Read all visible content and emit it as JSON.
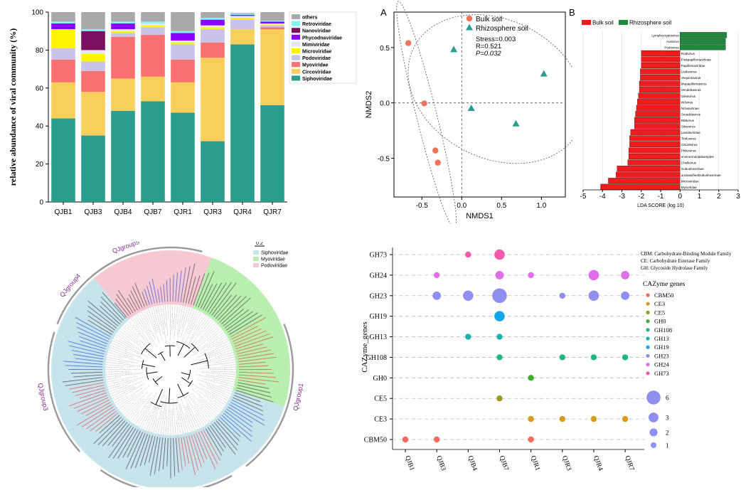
{
  "chart_data": [
    {
      "type": "bar",
      "stacked": true,
      "ylabel": "relative abundance of viral community (%)",
      "ylim": [
        0,
        100
      ],
      "yticks": [
        0,
        20,
        40,
        60,
        80,
        100
      ],
      "categories": [
        "QJB1",
        "QJB3",
        "QJB4",
        "QJB7",
        "QJR1",
        "QJR3",
        "QJR4",
        "QJR7"
      ],
      "legend_position": "right",
      "series": [
        {
          "name": "Siphoviridae",
          "color": "#2a9d8f",
          "values": [
            44,
            35,
            48,
            53,
            47,
            32,
            83,
            51
          ]
        },
        {
          "name": "Circoviridae",
          "color": "#f9cf5b",
          "values": [
            19,
            23,
            17,
            13,
            16,
            44,
            8,
            40
          ]
        },
        {
          "name": "Myoviridae",
          "color": "#f87170",
          "values": [
            12,
            11,
            22,
            22,
            12,
            8,
            0,
            1
          ]
        },
        {
          "name": "Podoviridae",
          "color": "#c9c3ec",
          "values": [
            6,
            5,
            2,
            4,
            8,
            7,
            5,
            1
          ]
        },
        {
          "name": "Microviridae",
          "color": "#fef400",
          "values": [
            10,
            4,
            1,
            1,
            1,
            1,
            1,
            0.5
          ]
        },
        {
          "name": "Mimiviridae",
          "color": "#e7e4f5",
          "values": [
            0,
            2,
            1,
            1,
            1,
            1,
            1,
            0.5
          ]
        },
        {
          "name": "Phycodnaviridae",
          "color": "#8b00ff",
          "values": [
            3,
            0,
            3,
            0,
            4,
            3,
            0.5,
            1
          ]
        },
        {
          "name": "Nanoviridae",
          "color": "#7b1060",
          "values": [
            0,
            10,
            0,
            0,
            0,
            0,
            0,
            0
          ]
        },
        {
          "name": "Retroviridae",
          "color": "#7ff5f5",
          "values": [
            1,
            1,
            1,
            1,
            1,
            1,
            0.5,
            0.5
          ]
        },
        {
          "name": "others",
          "color": "#a9a9a9",
          "values": [
            5,
            9,
            5,
            5,
            10,
            3,
            0.5,
            4.5
          ]
        }
      ]
    },
    {
      "type": "scatter",
      "panel_label": "A",
      "xlabel": "NMDS1",
      "ylabel": "NMDS2",
      "xlim": [
        -0.85,
        1.3
      ],
      "ylim": [
        -0.85,
        0.82
      ],
      "xticks": [
        -0.5,
        0.0,
        0.5,
        1.0
      ],
      "yticks": [
        -0.5,
        0.0,
        0.5
      ],
      "xtick_labels": [
        "-0.5",
        "0.0",
        "0.5",
        "1.0"
      ],
      "ytick_labels": [
        "-0.5",
        "0.0",
        "0.5"
      ],
      "annotations": [
        "Stress=0.003",
        "R=0.521",
        "P=0.032"
      ],
      "legend_position": "top-left",
      "series": [
        {
          "name": "Bulk soil",
          "marker": "circle",
          "color": "#f0735a",
          "points": [
            [
              -0.67,
              0.54
            ],
            [
              -0.47,
              -0.005
            ],
            [
              -0.33,
              -0.43
            ],
            [
              -0.3,
              -0.54
            ]
          ]
        },
        {
          "name": "Rhizosphere soil",
          "marker": "triangle",
          "color": "#2a9d8f",
          "points": [
            [
              -0.1,
              0.48
            ],
            [
              0.12,
              -0.05
            ],
            [
              0.68,
              -0.19
            ],
            [
              1.03,
              0.26
            ]
          ]
        }
      ]
    },
    {
      "type": "bar",
      "orientation": "horizontal",
      "panel_label": "B",
      "xlabel": "LDA SCORE (log 10)",
      "xlim": [
        -5,
        3
      ],
      "xticks": [
        -5,
        -4,
        -3,
        -2,
        -1,
        0,
        1,
        2,
        3
      ],
      "legend_position": "top",
      "legend": [
        {
          "name": "Bulk soil",
          "color": "#ee1c1c"
        },
        {
          "name": "Rhizosphere soil",
          "color": "#1f8a3b"
        }
      ],
      "categories": [
        "Lymphocryptovirus",
        "Aurivirus",
        "Podovirus",
        "Rodivirus",
        "Firstpapillomavirinae",
        "Papillomaviridae",
        "Listhevirus",
        "Vequintavirus",
        "Mupapillomavirus",
        "Vendettavirus",
        "Gilesvirus",
        "W3virus",
        "Nclasvirinae",
        "Sreaddavirus",
        "N55virus",
        "Siloevirus",
        "Lavidaviridae",
        "Timluvirus",
        "C8119virus",
        "Phikzvirus",
        "environmentalsamples",
        "Chellivirus",
        "Gokushovirinae",
        "unclassifiedGokushovirinae",
        "Microviridae",
        "Myoviridae"
      ],
      "values": [
        2.4,
        2.35,
        2.35,
        -2.0,
        -2.0,
        -2.0,
        -2.05,
        -2.05,
        -2.1,
        -2.1,
        -2.15,
        -2.2,
        -2.25,
        -2.3,
        -2.35,
        -2.35,
        -2.55,
        -2.6,
        -2.6,
        -2.65,
        -2.65,
        -2.7,
        -3.25,
        -3.3,
        -3.7,
        -4.1
      ],
      "groups": [
        "Rhizosphere soil",
        "Rhizosphere soil",
        "Rhizosphere soil",
        "Bulk soil",
        "Bulk soil",
        "Bulk soil",
        "Bulk soil",
        "Bulk soil",
        "Bulk soil",
        "Bulk soil",
        "Bulk soil",
        "Bulk soil",
        "Bulk soil",
        "Bulk soil",
        "Bulk soil",
        "Bulk soil",
        "Bulk soil",
        "Bulk soil",
        "Bulk soil",
        "Bulk soil",
        "Bulk soil",
        "Bulk soil",
        "Bulk soil",
        "Bulk soil",
        "Bulk soil",
        "Bulk soil"
      ]
    },
    {
      "type": "tree",
      "layout": "circular",
      "scale_label": "0.2",
      "legend": [
        {
          "name": "Siphoviridae",
          "color": "#c7e4ec"
        },
        {
          "name": "Myoviridae",
          "color": "#b9f0b0"
        },
        {
          "name": "Podoviridae",
          "color": "#f7c9d3"
        }
      ],
      "groups": [
        "QJgroup1",
        "QJgroup2",
        "QJgroup3",
        "QJgroup4",
        "QJgroup5"
      ]
    },
    {
      "type": "scatter",
      "style": "bubble",
      "ylabel": "CAZyme_genes",
      "categories_x": [
        "QJB1",
        "QJB3",
        "QJB4",
        "QJB7",
        "QJR1",
        "QJR3",
        "QJR4",
        "QJR7"
      ],
      "categories_y": [
        "CBM50",
        "CE3",
        "CE5",
        "GH0",
        "GH108",
        "GH13",
        "GH19",
        "GH23",
        "GH24",
        "GH73"
      ],
      "notes": [
        "CBM: Carbohydrate-Binding Module Family",
        "CE: Carbohydrate Esterase Family",
        "GH: Glycoside Hydrolase Family"
      ],
      "legend_title": "CAZyme genes",
      "legend_position": "right",
      "colors": {
        "CBM50": "#f26b5b",
        "CE3": "#d89a1e",
        "CE5": "#9e9a1e",
        "GH0": "#3fae2a",
        "GH108": "#1db784",
        "GH13": "#1bb3b0",
        "GH19": "#14a5e6",
        "GH23": "#8f8ff0",
        "GH24": "#e06ee8",
        "GH73": "#f05aa8"
      },
      "size_legend": [
        6,
        3,
        2,
        1
      ],
      "size_legend_labels": [
        "6",
        "3",
        "2",
        "1"
      ],
      "points": [
        {
          "x": "QJB4",
          "y": "GH73",
          "size": 1
        },
        {
          "x": "QJB7",
          "y": "GH73",
          "size": 3
        },
        {
          "x": "QJB3",
          "y": "GH24",
          "size": 1
        },
        {
          "x": "QJB7",
          "y": "GH24",
          "size": 2
        },
        {
          "x": "QJR1",
          "y": "GH24",
          "size": 1
        },
        {
          "x": "QJR4",
          "y": "GH24",
          "size": 3
        },
        {
          "x": "QJR7",
          "y": "GH24",
          "size": 2
        },
        {
          "x": "QJB3",
          "y": "GH23",
          "size": 2
        },
        {
          "x": "QJB4",
          "y": "GH23",
          "size": 3
        },
        {
          "x": "QJB7",
          "y": "GH23",
          "size": 6
        },
        {
          "x": "QJR3",
          "y": "GH23",
          "size": 1
        },
        {
          "x": "QJR4",
          "y": "GH23",
          "size": 3
        },
        {
          "x": "QJR7",
          "y": "GH23",
          "size": 2
        },
        {
          "x": "QJB7",
          "y": "GH19",
          "size": 3
        },
        {
          "x": "QJB4",
          "y": "GH13",
          "size": 1
        },
        {
          "x": "QJB7",
          "y": "GH13",
          "size": 1
        },
        {
          "x": "QJB7",
          "y": "GH108",
          "size": 1
        },
        {
          "x": "QJR3",
          "y": "GH108",
          "size": 1
        },
        {
          "x": "QJR4",
          "y": "GH108",
          "size": 1
        },
        {
          "x": "QJR7",
          "y": "GH108",
          "size": 1
        },
        {
          "x": "QJR1",
          "y": "GH0",
          "size": 1
        },
        {
          "x": "QJB7",
          "y": "CE5",
          "size": 1
        },
        {
          "x": "QJR1",
          "y": "CE3",
          "size": 1
        },
        {
          "x": "QJR3",
          "y": "CE3",
          "size": 1
        },
        {
          "x": "QJR4",
          "y": "CE3",
          "size": 1
        },
        {
          "x": "QJR7",
          "y": "CE3",
          "size": 1
        },
        {
          "x": "QJB1",
          "y": "CBM50",
          "size": 1
        },
        {
          "x": "QJB3",
          "y": "CBM50",
          "size": 1
        },
        {
          "x": "QJR1",
          "y": "CBM50",
          "size": 1
        }
      ]
    }
  ]
}
